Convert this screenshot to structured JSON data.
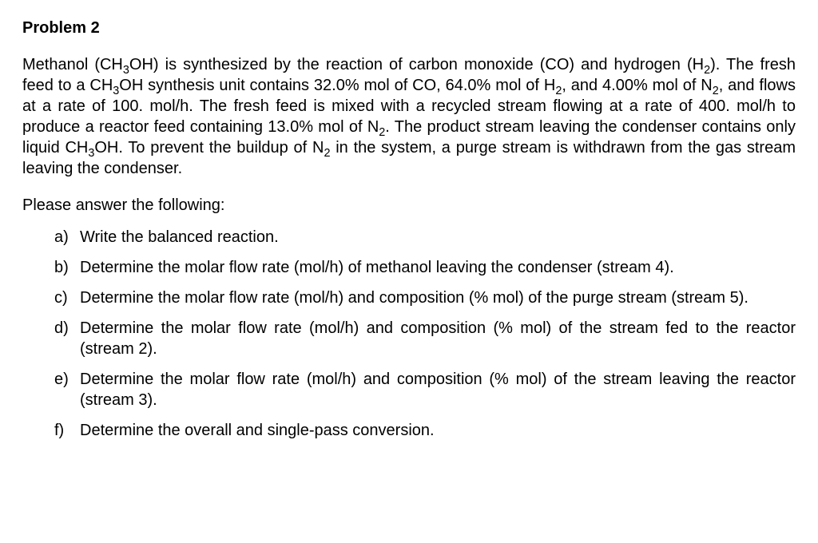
{
  "title": "Problem 2",
  "paragraph_html": "Methanol (CH<sub>3</sub>OH) is synthesized by the reaction of carbon monoxide (CO) and hydrogen (H<sub>2</sub>). The fresh feed to a CH<sub>3</sub>OH synthesis unit contains 32.0% mol of CO, 64.0% mol of H<sub>2</sub>, and 4.00% mol of N<sub>2</sub>, and flows at a rate of 100. mol/h. The fresh feed is mixed with a recycled stream flowing at a rate of 400. mol/h to produce a reactor feed containing 13.0% mol of N<sub>2</sub>. The product stream leaving the condenser contains only liquid CH<sub>3</sub>OH. To prevent the buildup of N<sub>2</sub> in the system, a purge stream is withdrawn from the gas stream leaving the condenser.",
  "prompt": "Please answer the following:",
  "items": [
    {
      "marker": "a)",
      "html": "Write the balanced reaction."
    },
    {
      "marker": "b)",
      "html": "Determine the molar flow rate (mol/h) of methanol leaving the condenser (stream 4)."
    },
    {
      "marker": "c)",
      "html": "Determine the molar flow rate (mol/h) and composition (% mol) of the purge stream (stream 5)."
    },
    {
      "marker": "d)",
      "html": "Determine the molar flow rate (mol/h) and composition (% mol) of the stream fed to the reactor (stream 2)."
    },
    {
      "marker": "e)",
      "html": "Determine the molar flow rate (mol/h) and composition (% mol) of the stream leaving the reactor (stream 3)."
    },
    {
      "marker": "f)",
      "html": "Determine the overall and single-pass conversion."
    }
  ],
  "colors": {
    "text": "#000000",
    "background": "#ffffff"
  },
  "typography": {
    "font_family": "Arial",
    "body_fontsize_pt": 15,
    "title_weight": "bold"
  }
}
